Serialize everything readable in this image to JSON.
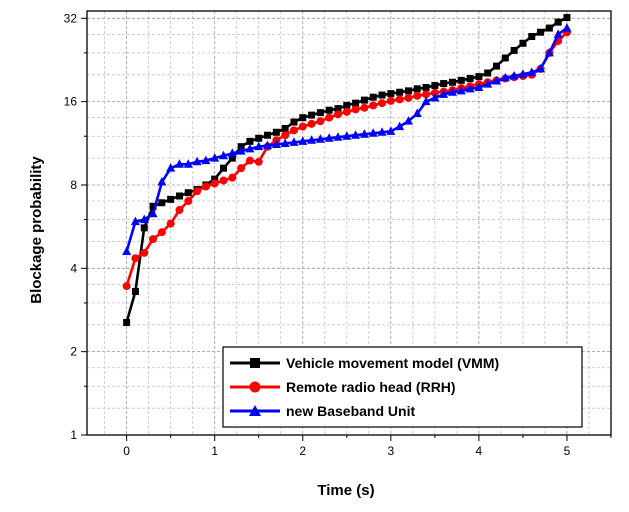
{
  "chart_data": {
    "type": "line",
    "title": "",
    "xlabel": "Time (s)",
    "ylabel": "Blockage probability",
    "xlim": [
      -0.45,
      5.5
    ],
    "ylim": [
      1,
      34
    ],
    "yscale": "log2",
    "xticks": [
      0,
      1,
      2,
      3,
      4,
      5
    ],
    "xtick_labels": [
      "0",
      "1",
      "2",
      "3",
      "4",
      "5"
    ],
    "yticks": [
      1,
      2,
      4,
      8,
      16,
      32
    ],
    "ytick_labels": [
      "1",
      "2",
      "4",
      "8",
      "16",
      "32"
    ],
    "grid": true,
    "legend_position": "bottom-right",
    "series": [
      {
        "name": "Vehicle movement model (VMM)",
        "color": "#000000",
        "marker": "square",
        "x": [
          0,
          0.1,
          0.2,
          0.3,
          0.4,
          0.5,
          0.6,
          0.7,
          0.8,
          0.9,
          1.0,
          1.1,
          1.2,
          1.3,
          1.4,
          1.5,
          1.6,
          1.7,
          1.8,
          1.9,
          2.0,
          2.1,
          2.2,
          2.3,
          2.4,
          2.5,
          2.6,
          2.7,
          2.8,
          2.9,
          3.0,
          3.1,
          3.2,
          3.3,
          3.4,
          3.5,
          3.6,
          3.7,
          3.8,
          3.9,
          4.0,
          4.1,
          4.2,
          4.3,
          4.4,
          4.5,
          4.6,
          4.7,
          4.8,
          4.9,
          5.0
        ],
        "y": [
          2.55,
          3.3,
          5.6,
          6.7,
          6.9,
          7.1,
          7.3,
          7.5,
          7.7,
          8.0,
          8.4,
          9.2,
          10.0,
          11.0,
          11.5,
          11.8,
          12.1,
          12.4,
          12.8,
          13.5,
          14.0,
          14.3,
          14.6,
          14.9,
          15.1,
          15.5,
          15.8,
          16.2,
          16.6,
          16.9,
          17.1,
          17.3,
          17.5,
          17.8,
          18.0,
          18.3,
          18.6,
          18.8,
          19.1,
          19.4,
          19.7,
          20.3,
          21.5,
          23.0,
          24.5,
          26.0,
          27.5,
          28.5,
          29.5,
          31.0,
          32.2
        ]
      },
      {
        "name": "Remote radio head (RRH)",
        "color": "#ff0000",
        "marker": "circle",
        "x": [
          0,
          0.1,
          0.2,
          0.3,
          0.4,
          0.5,
          0.6,
          0.7,
          0.8,
          0.9,
          1.0,
          1.1,
          1.2,
          1.3,
          1.4,
          1.5,
          1.6,
          1.7,
          1.8,
          1.9,
          2.0,
          2.1,
          2.2,
          2.3,
          2.4,
          2.5,
          2.6,
          2.7,
          2.8,
          2.9,
          3.0,
          3.1,
          3.2,
          3.3,
          3.4,
          3.5,
          3.6,
          3.7,
          3.8,
          3.9,
          4.0,
          4.1,
          4.2,
          4.3,
          4.4,
          4.5,
          4.6,
          4.7,
          4.8,
          4.9,
          5.0
        ],
        "y": [
          3.45,
          4.35,
          4.55,
          5.1,
          5.4,
          5.8,
          6.5,
          7.0,
          7.6,
          7.9,
          8.1,
          8.3,
          8.5,
          9.2,
          9.8,
          9.7,
          11.0,
          11.6,
          12.1,
          12.6,
          13.0,
          13.3,
          13.6,
          14.0,
          14.4,
          14.7,
          15.0,
          15.2,
          15.5,
          15.8,
          16.1,
          16.3,
          16.5,
          16.8,
          17.0,
          17.2,
          17.4,
          17.6,
          17.9,
          18.2,
          18.5,
          18.8,
          19.1,
          19.4,
          19.6,
          19.8,
          20.0,
          21.0,
          24.0,
          26.5,
          28.5
        ]
      },
      {
        "name": "new Baseband Unit",
        "color": "#0000ff",
        "marker": "triangle",
        "x": [
          0,
          0.1,
          0.2,
          0.3,
          0.4,
          0.5,
          0.6,
          0.7,
          0.8,
          0.9,
          1.0,
          1.1,
          1.2,
          1.3,
          1.4,
          1.5,
          1.6,
          1.7,
          1.8,
          1.9,
          2.0,
          2.1,
          2.2,
          2.3,
          2.4,
          2.5,
          2.6,
          2.7,
          2.8,
          2.9,
          3.0,
          3.1,
          3.2,
          3.3,
          3.4,
          3.5,
          3.6,
          3.7,
          3.8,
          3.9,
          4.0,
          4.1,
          4.2,
          4.3,
          4.4,
          4.5,
          4.6,
          4.7,
          4.8,
          4.9,
          5.0
        ],
        "y": [
          4.6,
          5.9,
          6.0,
          6.3,
          8.2,
          9.2,
          9.5,
          9.5,
          9.7,
          9.8,
          10.0,
          10.2,
          10.4,
          10.6,
          10.8,
          11.0,
          11.1,
          11.2,
          11.3,
          11.4,
          11.5,
          11.6,
          11.7,
          11.8,
          11.9,
          12.0,
          12.1,
          12.2,
          12.3,
          12.4,
          12.5,
          13.0,
          13.6,
          14.5,
          16.0,
          16.5,
          17.0,
          17.3,
          17.5,
          17.8,
          18.0,
          18.5,
          19.0,
          19.5,
          19.8,
          20.1,
          20.4,
          21.0,
          24.0,
          28.0,
          29.5
        ]
      }
    ]
  }
}
